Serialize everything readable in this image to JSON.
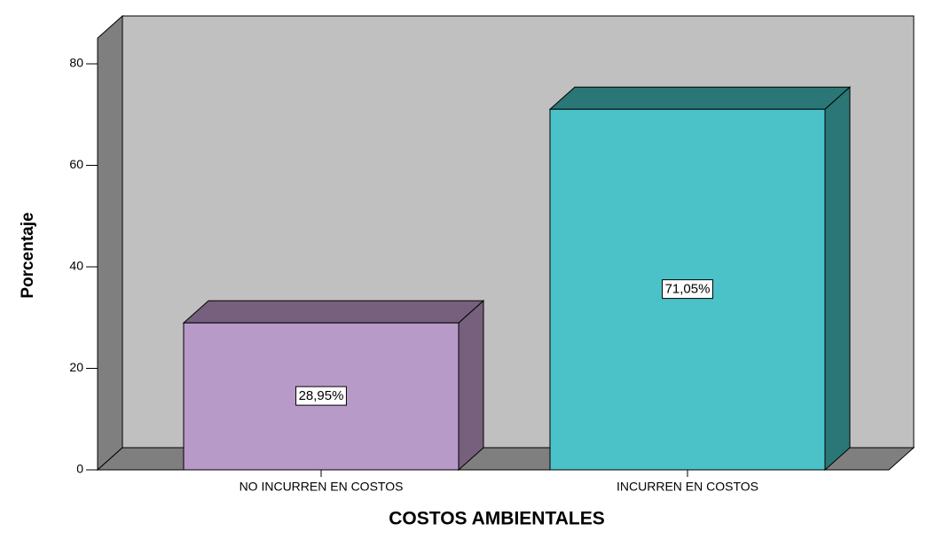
{
  "chart_data": {
    "type": "bar3d",
    "x_label": "COSTOS AMBIENTALES",
    "y_label": "Porcentaje",
    "categories": [
      "NO INCURREN EN COSTOS",
      "INCURREN EN COSTOS"
    ],
    "values": [
      28.95,
      71.05
    ],
    "value_labels": [
      "28,95%",
      "71,05%"
    ],
    "colors": [
      "#b89ac8",
      "#4bc2c8"
    ],
    "side_colors": [
      "#76607e",
      "#2b7676"
    ],
    "ylim": [
      0,
      80
    ],
    "yticks": [
      0,
      20,
      40,
      60,
      80
    ]
  }
}
